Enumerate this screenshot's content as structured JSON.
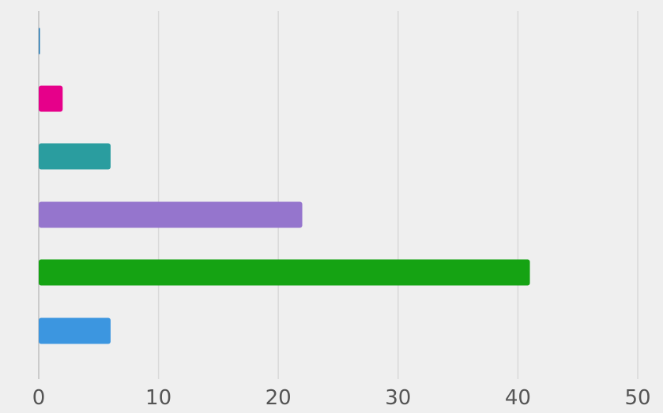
{
  "chart_data": {
    "type": "bar",
    "orientation": "horizontal",
    "categories": [
      "",
      "",
      "",
      "",
      "",
      ""
    ],
    "values": [
      0.1,
      2,
      6,
      22,
      41,
      6
    ],
    "bar_colors": [
      "#1f77b4",
      "#e6008a",
      "#2a9d9f",
      "#9575cd",
      "#15a313",
      "#3c96e0"
    ],
    "xlim": [
      0,
      50
    ],
    "x_ticks": [
      0,
      10,
      20,
      30,
      40,
      50
    ],
    "grid": "vertical",
    "title": "",
    "xlabel": "",
    "ylabel": ""
  },
  "colors": {
    "background": "#efefef",
    "grid": "#d9d9d9",
    "axis": "#bfbfbf",
    "tick_text": "#555555"
  }
}
